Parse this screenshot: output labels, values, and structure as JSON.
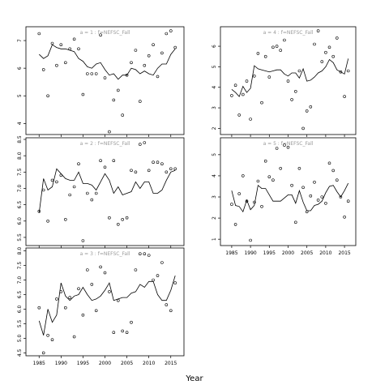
{
  "chart_data": {
    "type": "line",
    "xlabel": "Year",
    "panels": [
      {
        "id": "a1",
        "title": "a = 1  :  f=NEFSC_Fall",
        "ylim": [
          3.6,
          7.5
        ],
        "yticks": [
          4,
          5,
          6,
          7
        ],
        "xlim": [
          1982,
          2018
        ],
        "xticks": [
          1985,
          1990,
          1995,
          2000,
          2005,
          2010,
          2015
        ],
        "show_xticklabels": false,
        "line": {
          "x": [
            1985,
            1986,
            1987,
            1988,
            1989,
            1990,
            1991,
            1992,
            1993,
            1994,
            1995,
            1996,
            1997,
            1998,
            1999,
            2000,
            2001,
            2002,
            2003,
            2004,
            2005,
            2006,
            2007,
            2008,
            2009,
            2010,
            2011,
            2012,
            2013,
            2014,
            2015,
            2016
          ],
          "y": [
            6.5,
            6.35,
            6.45,
            6.85,
            6.75,
            6.7,
            6.7,
            6.65,
            6.6,
            6.35,
            6.25,
            6.05,
            6.0,
            6.15,
            6.2,
            5.95,
            5.75,
            5.8,
            5.6,
            5.75,
            5.75,
            6.0,
            5.95,
            5.8,
            5.9,
            5.8,
            5.75,
            6.0,
            6.15,
            6.15,
            6.5,
            6.7
          ]
        },
        "points": {
          "x": [
            1985,
            1986,
            1987,
            1988,
            1989,
            1990,
            1991,
            1992,
            1993,
            1994,
            1995,
            1996,
            1997,
            1998,
            1999,
            2000,
            2001,
            2002,
            2003,
            2004,
            2005,
            2006,
            2007,
            2008,
            2009,
            2010,
            2011,
            2012,
            2013,
            2014,
            2015,
            2016
          ],
          "y": [
            7.25,
            5.95,
            5.0,
            6.9,
            6.1,
            6.85,
            6.2,
            6.7,
            7.05,
            6.7,
            5.05,
            5.8,
            5.8,
            5.8,
            7.2,
            5.65,
            3.7,
            4.85,
            5.2,
            4.3,
            5.75,
            6.2,
            6.65,
            4.8,
            6.1,
            6.45,
            6.85,
            5.7,
            6.55,
            7.25,
            7.35,
            6.75
          ]
        }
      },
      {
        "id": "a2",
        "title": "a = 2  :  f=NEFSC_Fall",
        "ylim": [
          5.25,
          8.55
        ],
        "yticks": [
          5.5,
          6.0,
          6.5,
          7.0,
          7.5,
          8.0,
          8.5
        ],
        "xlim": [
          1982,
          2018
        ],
        "xticks": [
          1985,
          1990,
          1995,
          2000,
          2005,
          2010,
          2015
        ],
        "show_xticklabels": false,
        "line": {
          "x": [
            1985,
            1986,
            1987,
            1988,
            1989,
            1990,
            1991,
            1992,
            1993,
            1994,
            1995,
            1996,
            1997,
            1998,
            1999,
            2000,
            2001,
            2002,
            2003,
            2004,
            2005,
            2006,
            2007,
            2008,
            2009,
            2010,
            2011,
            2012,
            2013,
            2014,
            2015,
            2016
          ],
          "y": [
            6.25,
            7.3,
            6.95,
            7.05,
            7.6,
            7.45,
            7.3,
            7.25,
            7.25,
            7.5,
            7.15,
            7.15,
            7.1,
            6.95,
            7.2,
            7.45,
            7.25,
            6.85,
            7.05,
            6.8,
            6.85,
            6.9,
            7.2,
            7.0,
            7.2,
            7.2,
            6.85,
            6.85,
            6.95,
            7.25,
            7.5,
            7.55
          ]
        },
        "points": {
          "x": [
            1985,
            1986,
            1987,
            1988,
            1989,
            1990,
            1991,
            1992,
            1993,
            1994,
            1995,
            1996,
            1997,
            1998,
            1999,
            2000,
            2001,
            2002,
            2003,
            2004,
            2005,
            2006,
            2007,
            2008,
            2009,
            2010,
            2011,
            2012,
            2013,
            2014,
            2015,
            2016
          ],
          "y": [
            6.3,
            6.95,
            6.0,
            7.25,
            7.2,
            7.4,
            6.05,
            6.8,
            7.05,
            7.75,
            5.4,
            6.85,
            6.65,
            6.85,
            7.85,
            7.65,
            6.1,
            7.85,
            5.9,
            6.05,
            6.1,
            7.55,
            7.5,
            8.35,
            8.4,
            7.55,
            7.8,
            7.8,
            7.75,
            7.5,
            7.6,
            7.6
          ]
        }
      },
      {
        "id": "a3",
        "title": "a = 3  :  f=NEFSC_Fall",
        "ylim": [
          4.4,
          8.1
        ],
        "yticks": [
          4.5,
          5.0,
          5.5,
          6.0,
          6.5,
          7.0,
          7.5,
          8.0
        ],
        "xlim": [
          1982,
          2018
        ],
        "xticks": [
          1985,
          1990,
          1995,
          2000,
          2005,
          2010,
          2015
        ],
        "show_xticklabels": true,
        "line": {
          "x": [
            1985,
            1986,
            1987,
            1988,
            1989,
            1990,
            1991,
            1992,
            1993,
            1994,
            1995,
            1996,
            1997,
            1998,
            1999,
            2000,
            2001,
            2002,
            2003,
            2004,
            2005,
            2006,
            2007,
            2008,
            2009,
            2010,
            2011,
            2012,
            2013,
            2014,
            2015,
            2016
          ],
          "y": [
            5.6,
            5.1,
            6.0,
            5.55,
            5.8,
            6.9,
            6.45,
            6.3,
            6.45,
            6.5,
            6.75,
            6.5,
            6.3,
            6.35,
            6.45,
            6.65,
            6.9,
            6.3,
            6.35,
            6.4,
            6.4,
            6.55,
            6.6,
            6.85,
            6.75,
            6.95,
            6.95,
            6.5,
            6.3,
            6.3,
            6.65,
            7.15
          ]
        },
        "points": {
          "x": [
            1985,
            1986,
            1987,
            1988,
            1989,
            1990,
            1991,
            1992,
            1993,
            1994,
            1995,
            1996,
            1997,
            1998,
            1999,
            2000,
            2001,
            2002,
            2003,
            2004,
            2005,
            2006,
            2007,
            2008,
            2009,
            2010,
            2011,
            2012,
            2013,
            2014,
            2015,
            2016
          ],
          "y": [
            6.05,
            4.5,
            5.1,
            4.95,
            6.35,
            6.6,
            6.05,
            6.4,
            5.05,
            6.7,
            5.8,
            7.35,
            6.85,
            5.95,
            7.45,
            7.25,
            6.6,
            5.2,
            6.3,
            5.25,
            5.2,
            5.55,
            7.35,
            7.9,
            7.9,
            7.85,
            7.0,
            7.15,
            7.6,
            6.15,
            5.95,
            6.9
          ]
        }
      },
      {
        "id": "a4",
        "title": "a = 4  :  f=NEFSC_Fall",
        "ylim": [
          1.7,
          6.95
        ],
        "yticks": [
          2,
          3,
          4,
          5,
          6
        ],
        "xlim": [
          1982,
          2018
        ],
        "xticks": [
          1985,
          1990,
          1995,
          2000,
          2005,
          2010,
          2015
        ],
        "show_xticklabels": false,
        "line": {
          "x": [
            1985,
            1986,
            1987,
            1988,
            1989,
            1990,
            1991,
            1992,
            1993,
            1994,
            1995,
            1996,
            1997,
            1998,
            1999,
            2000,
            2001,
            2002,
            2003,
            2004,
            2005,
            2006,
            2007,
            2008,
            2009,
            2010,
            2011,
            2012,
            2013,
            2014,
            2015,
            2016
          ],
          "y": [
            3.9,
            3.75,
            3.55,
            4.05,
            3.75,
            3.95,
            5.05,
            4.9,
            4.85,
            4.8,
            4.75,
            4.8,
            4.85,
            4.85,
            4.65,
            4.55,
            4.7,
            4.7,
            4.45,
            4.9,
            4.3,
            4.35,
            4.5,
            4.7,
            4.8,
            5.0,
            5.35,
            5.2,
            4.85,
            4.75,
            4.65,
            5.4
          ]
        },
        "points": {
          "x": [
            1985,
            1986,
            1987,
            1988,
            1989,
            1990,
            1991,
            1992,
            1993,
            1994,
            1995,
            1996,
            1997,
            1998,
            1999,
            2000,
            2001,
            2002,
            2003,
            2004,
            2005,
            2006,
            2007,
            2008,
            2009,
            2010,
            2011,
            2012,
            2013,
            2014,
            2015,
            2016
          ],
          "y": [
            3.6,
            4.1,
            2.65,
            3.65,
            4.3,
            2.45,
            4.55,
            5.65,
            3.25,
            5.5,
            4.5,
            5.95,
            6.0,
            5.8,
            6.3,
            4.3,
            3.4,
            3.8,
            4.8,
            2.0,
            2.85,
            3.05,
            6.1,
            6.75,
            5.25,
            5.7,
            5.95,
            5.5,
            6.4,
            4.75,
            3.55,
            4.8
          ]
        }
      },
      {
        "id": "a5",
        "title": "a = 5  :  f=NEFSC_Fall",
        "ylim": [
          0.7,
          5.8
        ],
        "yticks": [
          1,
          2,
          3,
          4,
          5
        ],
        "xlim": [
          1982,
          2018
        ],
        "xticks": [
          1985,
          1990,
          1995,
          2000,
          2005,
          2010,
          2015
        ],
        "show_xticklabels": true,
        "line": {
          "x": [
            1985,
            1986,
            1987,
            1988,
            1989,
            1990,
            1991,
            1992,
            1993,
            1994,
            1995,
            1996,
            1997,
            1998,
            1999,
            2000,
            2001,
            2002,
            2003,
            2004,
            2005,
            2006,
            2007,
            2008,
            2009,
            2010,
            2011,
            2012,
            2013,
            2014,
            2015,
            2016
          ],
          "y": [
            3.3,
            2.6,
            2.55,
            2.3,
            2.85,
            2.4,
            2.6,
            3.55,
            3.4,
            3.4,
            3.1,
            2.8,
            2.8,
            2.8,
            2.95,
            3.1,
            3.1,
            2.7,
            3.3,
            2.75,
            2.35,
            2.35,
            2.6,
            2.65,
            2.8,
            3.2,
            3.5,
            3.55,
            3.25,
            3.0,
            3.3,
            3.65
          ]
        },
        "points": {
          "x": [
            1985,
            1986,
            1987,
            1988,
            1989,
            1990,
            1991,
            1992,
            1993,
            1994,
            1995,
            1996,
            1997,
            1998,
            1999,
            2000,
            2001,
            2002,
            2003,
            2004,
            2005,
            2006,
            2007,
            2008,
            2009,
            2010,
            2011,
            2012,
            2013,
            2014,
            2015,
            2016
          ],
          "y": [
            2.65,
            1.7,
            3.15,
            4.0,
            2.8,
            0.95,
            2.75,
            3.75,
            2.55,
            4.7,
            3.95,
            3.8,
            5.3,
            4.35,
            5.45,
            5.35,
            3.55,
            1.8,
            4.35,
            3.45,
            2.3,
            3.05,
            3.7,
            2.85,
            3.0,
            2.7,
            4.6,
            4.25,
            3.8,
            3.0,
            2.05,
            2.8
          ]
        }
      }
    ]
  }
}
